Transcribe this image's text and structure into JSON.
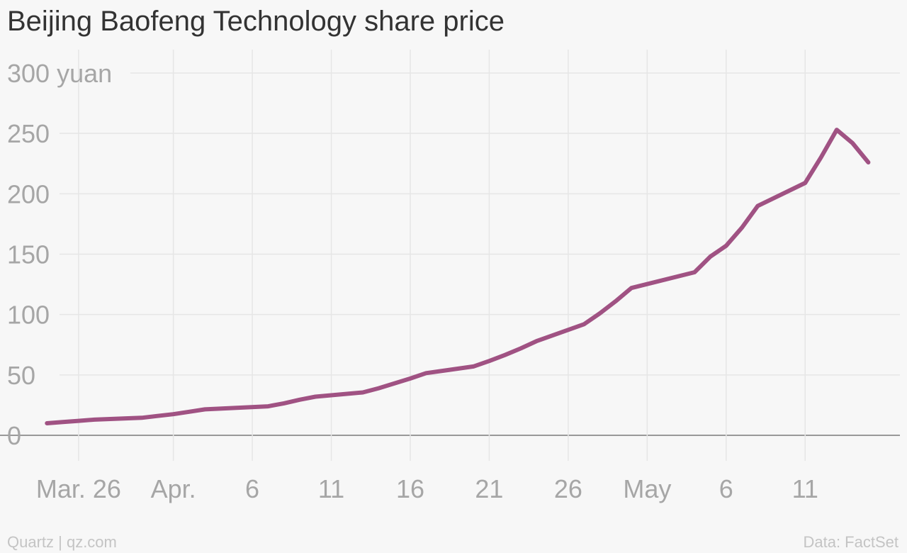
{
  "chart_data": {
    "type": "line",
    "title": "Beijing Baofeng Technology share price",
    "ylabel": "yuan",
    "ylim": [
      0,
      300
    ],
    "yticks": [
      0,
      50,
      100,
      150,
      200,
      250,
      300
    ],
    "ytick_labels": [
      "0",
      "50",
      "100",
      "150",
      "200",
      "250",
      "300 yuan"
    ],
    "xlim": [
      "2015-03-23",
      "2015-05-17"
    ],
    "xticks": [
      "2015-03-26",
      "2015-04-01",
      "2015-04-06",
      "2015-04-11",
      "2015-04-16",
      "2015-04-21",
      "2015-04-26",
      "2015-05-01",
      "2015-05-06",
      "2015-05-11"
    ],
    "xtick_labels": [
      "Mar. 26",
      "Apr.",
      "6",
      "11",
      "16",
      "21",
      "26",
      "May",
      "6",
      "11"
    ],
    "grid": true,
    "series_color": "#a05283",
    "series": [
      {
        "x": [
          "2015-03-24",
          "2015-03-25",
          "2015-03-26",
          "2015-03-27",
          "2015-03-30",
          "2015-03-31",
          "2015-04-01",
          "2015-04-02",
          "2015-04-03",
          "2015-04-07",
          "2015-04-08",
          "2015-04-09",
          "2015-04-10",
          "2015-04-13",
          "2015-04-14",
          "2015-04-15",
          "2015-04-16",
          "2015-04-17",
          "2015-04-20",
          "2015-04-21",
          "2015-04-22",
          "2015-04-23",
          "2015-04-24",
          "2015-04-27",
          "2015-04-28",
          "2015-04-29",
          "2015-04-30",
          "2015-05-04",
          "2015-05-05",
          "2015-05-06",
          "2015-05-07",
          "2015-05-08",
          "2015-05-11",
          "2015-05-12",
          "2015-05-13",
          "2015-05-14",
          "2015-05-15"
        ],
        "values": [
          10,
          11,
          12,
          13,
          14.5,
          16,
          17.5,
          19.5,
          21.5,
          24,
          26.5,
          29.5,
          32,
          35.5,
          39,
          43,
          47,
          51.5,
          57,
          61.5,
          66.5,
          72,
          78,
          92,
          101,
          111,
          122,
          135,
          148,
          157,
          172,
          190,
          209,
          230,
          253,
          242,
          226
        ]
      }
    ]
  },
  "footer": {
    "source_left": "Quartz | qz.com",
    "source_right": "Data: FactSet"
  }
}
